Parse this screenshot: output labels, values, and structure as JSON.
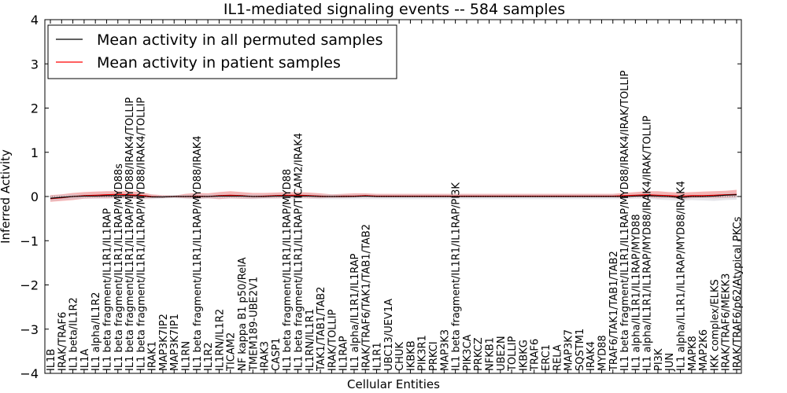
{
  "chart_data": {
    "type": "line",
    "title": "IL1-mediated signaling events -- 584 samples",
    "xlabel": "Cellular Entities",
    "ylabel": "Inferred Activity",
    "ylim": [
      -4,
      4
    ],
    "yticks": [
      "4",
      "3",
      "2",
      "1",
      "0",
      "−1",
      "−2",
      "−3",
      "−4"
    ],
    "ytick_values": [
      4,
      3,
      2,
      1,
      0,
      -1,
      -2,
      -3,
      -4
    ],
    "legend": {
      "position": "top-left",
      "entries": [
        {
          "label": "Mean activity in all permuted samples",
          "color": "#000000"
        },
        {
          "label": "Mean activity in patient samples",
          "color": "#ff0000"
        }
      ]
    },
    "categories": [
      "IL1B",
      "IRAK/TRAF6",
      "IL1 beta/IL1R2",
      "IL1A",
      "IL1 alpha/IL1R2",
      "IL1 beta fragment/IL1R1/IL1RAP",
      "IL1 beta fragment/IL1R1/IL1RAP/MYD88s",
      "IL1 beta fragment/IL1R1/IL1RAP/MYD88/IRAK4/TOLLIP",
      "IL1 beta fragment/IL1R1/IL1RAP/MYD88/IRAK4/TOLLIP",
      "IRAK1",
      "MAP3K7IP2",
      "MAP3K7IP1",
      "IL1RN",
      "IL1 beta fragment/IL1R1/IL1RAP/MYD88/IRAK4",
      "IL1R2",
      "IL1RN/IL1R2",
      "TICAM2",
      "NF kappa B1 p50/RelA",
      "TMEM189-UBE2V1",
      "IRAK3",
      "CASP1",
      "IL1 beta fragment/IL1R1/IL1RAP/MYD88",
      "IL1 beta fragment/IL1R1/IL1RAP/TICAM2/IRAK4",
      "IL1RN/IL1R1",
      "TAK1/TAB1/TAB2",
      "IRAK/TOLLIP",
      "IL1RAP",
      "IL1 alpha/IL1R1/IL1RAP",
      "IRAK/TRAF6/TAK1/TAB1/TAB2",
      "IL1R1",
      "UBC13/UEV1A",
      "CHUK",
      "IKBKB",
      "PIK3R1",
      "PRKCI",
      "MAP3K3",
      "IL1 beta fragment/IL1R1/IL1RAP/PI3K",
      "PIK3CA",
      "PRKCZ",
      "NFKB1",
      "UBE2N",
      "TOLLIP",
      "IKBKG",
      "TRAF6",
      "ERC1",
      "RELA",
      "MAP3K7",
      "SQSTM1",
      "IRAK4",
      "MYD88",
      "TRAF6/TAK1/TAB1/TAB2",
      "IL1 beta fragment/IL1R1/IL1RAP/MYD88/IRAK4/IRAK/TOLLIP",
      "IL1 alpha/IL1R1/IL1RAP/MYD88",
      "IL1 alpha/IL1R1/IL1RAP/MYD88/IRAK4/IRAK/TOLLIP",
      "PI3K",
      "JUN",
      "IL1 alpha/IL1R1/IL1RAP/MYD88/IRAK4",
      "MAPK8",
      "MAP2K6",
      "IKK complex/ELKS",
      "IRAK/TRAF6/MEKK3",
      "IRAK/TRAF6/p62/Atypical PKCs"
    ],
    "series": [
      {
        "name": "Mean activity in patient samples",
        "color": "#ff0000",
        "band_color": "#f08080",
        "values": [
          -0.05,
          -0.03,
          0.0,
          0.02,
          0.03,
          0.04,
          0.05,
          0.04,
          0.03,
          0.0,
          -0.01,
          0.0,
          0.0,
          0.01,
          0.0,
          0.02,
          0.03,
          0.02,
          0.0,
          0.01,
          0.02,
          0.03,
          0.03,
          0.02,
          0.01,
          0.0,
          0.01,
          0.01,
          0.02,
          0.01,
          0.01,
          0.01,
          0.01,
          0.01,
          0.01,
          0.01,
          0.01,
          0.01,
          0.01,
          0.01,
          0.01,
          0.01,
          0.01,
          0.01,
          0.01,
          0.01,
          0.01,
          0.01,
          0.01,
          0.01,
          0.01,
          0.02,
          0.03,
          0.04,
          0.03,
          0.02,
          0.01,
          0.02,
          0.02,
          0.03,
          0.04,
          0.05
        ],
        "lower": [
          -0.12,
          -0.1,
          -0.08,
          -0.05,
          -0.04,
          -0.04,
          -0.03,
          -0.04,
          -0.05,
          -0.04,
          -0.03,
          -0.02,
          -0.04,
          -0.05,
          -0.04,
          -0.06,
          -0.04,
          -0.05,
          -0.05,
          -0.04,
          -0.04,
          -0.03,
          -0.03,
          -0.04,
          -0.04,
          -0.03,
          -0.03,
          -0.02,
          -0.02,
          -0.02,
          -0.02,
          -0.02,
          -0.02,
          -0.02,
          -0.02,
          -0.02,
          -0.02,
          -0.02,
          -0.02,
          -0.02,
          -0.02,
          -0.02,
          -0.02,
          -0.02,
          -0.02,
          -0.02,
          -0.02,
          -0.02,
          -0.02,
          -0.02,
          -0.02,
          -0.03,
          -0.02,
          -0.02,
          -0.04,
          -0.03,
          -0.06,
          -0.04,
          -0.03,
          -0.04,
          -0.03,
          -0.02
        ],
        "upper": [
          0.03,
          0.05,
          0.08,
          0.1,
          0.11,
          0.12,
          0.12,
          0.12,
          0.1,
          0.05,
          0.03,
          0.02,
          0.06,
          0.08,
          0.07,
          0.1,
          0.12,
          0.1,
          0.08,
          0.08,
          0.09,
          0.1,
          0.1,
          0.09,
          0.07,
          0.05,
          0.06,
          0.07,
          0.07,
          0.06,
          0.06,
          0.06,
          0.06,
          0.06,
          0.06,
          0.06,
          0.06,
          0.06,
          0.06,
          0.06,
          0.06,
          0.06,
          0.06,
          0.06,
          0.06,
          0.06,
          0.06,
          0.06,
          0.06,
          0.06,
          0.06,
          0.08,
          0.1,
          0.12,
          0.12,
          0.1,
          0.09,
          0.1,
          0.11,
          0.12,
          0.13,
          0.15
        ]
      },
      {
        "name": "Mean activity in all permuted samples",
        "color": "#000000",
        "band_color": "#c8c8d2",
        "values": [
          -0.04,
          -0.02,
          0.0,
          0.01,
          0.01,
          0.02,
          0.02,
          0.02,
          0.01,
          -0.01,
          -0.01,
          0.0,
          0.0,
          0.0,
          0.0,
          0.01,
          0.01,
          0.01,
          0.0,
          0.0,
          0.01,
          0.01,
          0.01,
          0.01,
          0.0,
          0.0,
          0.0,
          0.0,
          0.01,
          0.0,
          0.0,
          0.0,
          0.0,
          0.0,
          0.0,
          0.0,
          0.0,
          0.0,
          0.0,
          0.0,
          0.0,
          0.0,
          0.0,
          0.0,
          0.0,
          0.0,
          0.0,
          0.0,
          0.0,
          0.0,
          0.0,
          0.0,
          0.01,
          0.02,
          0.01,
          0.0,
          -0.02,
          0.0,
          0.0,
          0.01,
          0.03,
          0.04
        ],
        "lower": [
          -0.1,
          -0.08,
          -0.06,
          -0.05,
          -0.05,
          -0.05,
          -0.05,
          -0.05,
          -0.06,
          -0.06,
          -0.05,
          -0.04,
          -0.05,
          -0.06,
          -0.05,
          -0.05,
          -0.05,
          -0.05,
          -0.06,
          -0.05,
          -0.05,
          -0.05,
          -0.05,
          -0.05,
          -0.06,
          -0.06,
          -0.06,
          -0.06,
          -0.06,
          -0.06,
          -0.06,
          -0.06,
          -0.06,
          -0.06,
          -0.06,
          -0.06,
          -0.06,
          -0.06,
          -0.06,
          -0.06,
          -0.06,
          -0.06,
          -0.06,
          -0.06,
          -0.06,
          -0.06,
          -0.06,
          -0.06,
          -0.06,
          -0.06,
          -0.06,
          -0.06,
          -0.05,
          -0.05,
          -0.07,
          -0.08,
          -0.1,
          -0.08,
          -0.09,
          -0.1,
          -0.08,
          -0.07
        ],
        "upper": [
          0.02,
          0.04,
          0.05,
          0.06,
          0.06,
          0.07,
          0.07,
          0.07,
          0.06,
          0.04,
          0.03,
          0.03,
          0.04,
          0.05,
          0.05,
          0.06,
          0.06,
          0.06,
          0.05,
          0.05,
          0.06,
          0.06,
          0.06,
          0.06,
          0.05,
          0.05,
          0.05,
          0.05,
          0.06,
          0.05,
          0.05,
          0.05,
          0.05,
          0.05,
          0.05,
          0.05,
          0.05,
          0.05,
          0.05,
          0.05,
          0.05,
          0.05,
          0.05,
          0.05,
          0.05,
          0.05,
          0.05,
          0.05,
          0.05,
          0.05,
          0.05,
          0.05,
          0.06,
          0.07,
          0.06,
          0.05,
          0.04,
          0.05,
          0.05,
          0.06,
          0.08,
          0.09
        ]
      }
    ]
  }
}
